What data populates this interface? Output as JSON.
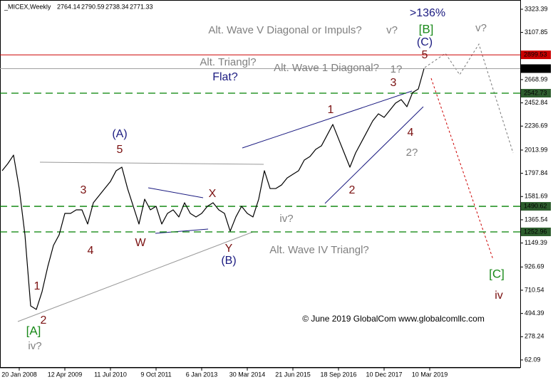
{
  "chart_data": {
    "type": "line",
    "header": {
      "symbol": "_MICEX,Weekly",
      "ohlc": [
        2764.14,
        2790.59,
        2738.34,
        2771.33
      ]
    },
    "categories": [
      null,
      null,
      null,
      "20 Jan 2008",
      null,
      null,
      null,
      null,
      null,
      null,
      null,
      "12 Apr 2009",
      null,
      null,
      null,
      null,
      null,
      null,
      null,
      "11 Jul 2010",
      null,
      null,
      null,
      null,
      null,
      null,
      null,
      "9 Oct 2011",
      null,
      null,
      null,
      null,
      null,
      null,
      null,
      "6 Jan 2013",
      null,
      null,
      null,
      null,
      null,
      null,
      null,
      "30 Mar 2014",
      null,
      null,
      null,
      null,
      null,
      null,
      null,
      "21 Jun 2015",
      null,
      null,
      null,
      null,
      null,
      null,
      null,
      "18 Sep 2016",
      null,
      null,
      null,
      null,
      null,
      null,
      null,
      "10 Dec 2017",
      null,
      null,
      null,
      null,
      null,
      null,
      null,
      "10 Mar 2019",
      null,
      null,
      null,
      null,
      null,
      null,
      null,
      null,
      null,
      null,
      null,
      null,
      null,
      null
    ],
    "series": [
      {
        "color": "#000000",
        "values": [
          1822,
          1888,
          1967,
          1656,
          1226,
          565,
          532,
          697,
          929,
          1127,
          1226,
          1425,
          1425,
          1458,
          1458,
          1326,
          1524,
          1590,
          1656,
          1722,
          1822,
          1855,
          1656,
          1491,
          1326,
          1557,
          1458,
          1491,
          1326,
          1425,
          1458,
          1392,
          1524,
          1425,
          1392,
          1425,
          1491,
          1524,
          1458,
          1425,
          1259,
          1392,
          1491,
          1425,
          1392,
          1557,
          1822,
          1656,
          1656,
          1689,
          1755,
          1789,
          1822,
          1921,
          1954,
          2020,
          2053,
          2152,
          2252,
          2119,
          1987,
          1855,
          1987,
          2086,
          2185,
          2285,
          2351,
          2318,
          2384,
          2450,
          2483,
          2417,
          2549,
          2582,
          2771,
          null,
          null,
          null,
          null,
          null,
          null,
          null,
          null,
          null,
          null,
          null,
          null,
          null,
          null,
          null
        ]
      }
    ],
    "ylim": [
      -10.7,
      3409.4
    ],
    "yticks": [
      3323.39,
      3107.85,
      2668.99,
      2452.84,
      2236.69,
      2013.99,
      1797.84,
      1581.69,
      1365.54,
      1149.39,
      926.69,
      710.54,
      494.39,
      278.24,
      62.09
    ],
    "levels": [
      {
        "value": 2899.53,
        "color": "#cc0000",
        "label_color": "#cc0000",
        "style": "solid"
      },
      {
        "value": 2771.33,
        "color": "#a0a0a0",
        "label_color": "#000000",
        "style": "solid"
      },
      {
        "value": 2542.73,
        "color": "#008000",
        "label_color": "#2e5e2e",
        "style": "dashed"
      },
      {
        "value": 1490.62,
        "color": "#008000",
        "label_color": "#2e5e2e",
        "style": "dashed"
      },
      {
        "value": 1252.96,
        "color": "#008000",
        "label_color": "#2e5e2e",
        "style": "dashed"
      }
    ],
    "annotations": [
      "Alt. Wave V Diagonal or Impuls?",
      "v?",
      "[B]",
      ">136%",
      "(C)",
      "5",
      "v?",
      "Alt. Triangl?",
      "Flat?",
      "Alt. Wave 1 Diagonal?",
      "1?",
      "3",
      "1",
      "(A)",
      "5",
      "4",
      "2?",
      "3",
      "X",
      "2",
      "iv?",
      "4",
      "W",
      "Y",
      "(B)",
      "Alt. Wave IV Triangl?",
      "[C]",
      "iv",
      "1",
      "2",
      "[A]",
      "iv?"
    ],
    "copyright": "© June 2019 GlobalCom www.globalcomllc.com"
  }
}
